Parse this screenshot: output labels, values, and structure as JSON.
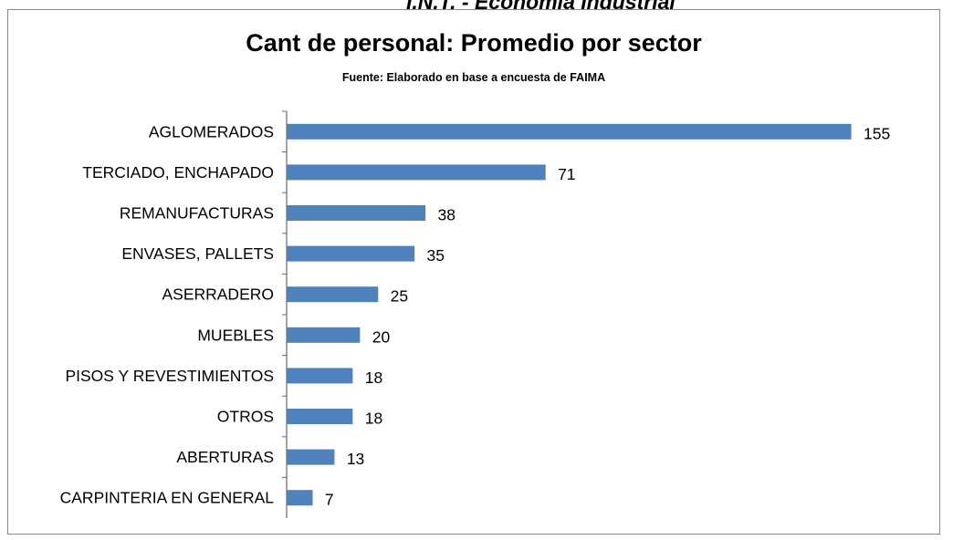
{
  "page": {
    "header": "I.N.T. - Economía Industrial"
  },
  "colors": {
    "bar": "#4f81bd",
    "axis": "#6a6a6a"
  },
  "chart_data": {
    "type": "bar",
    "orientation": "horizontal",
    "title": "Cant de personal: Promedio por sector",
    "subtitle": "Fuente: Elaborado en base a encuesta de FAIMA",
    "categories": [
      "AGLOMERADOS",
      "TERCIADO, ENCHAPADO",
      "REMANUFACTURAS",
      "ENVASES, PALLETS",
      "ASERRADERO",
      "MUEBLES",
      "PISOS Y REVESTIMIENTOS",
      "OTROS",
      "ABERTURAS",
      "CARPINTERIA EN GENERAL"
    ],
    "values": [
      155,
      71,
      38,
      35,
      25,
      20,
      18,
      18,
      13,
      7
    ],
    "data_labels": [
      "155",
      "71",
      "38",
      "35",
      "25",
      "20",
      "18",
      "18",
      "13",
      "7"
    ],
    "xlim": [
      0,
      155
    ],
    "grid": false,
    "legend": "none"
  }
}
